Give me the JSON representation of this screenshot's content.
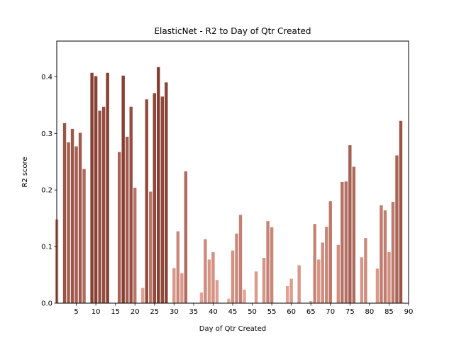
{
  "chart_data": {
    "type": "bar",
    "title": "ElasticNet - R2 to Day of Qtr Created",
    "xlabel": "Day of Qtr Created",
    "ylabel": "R2 score",
    "xlim": [
      0,
      90
    ],
    "ylim": [
      0,
      0.463
    ],
    "xticks": [
      5,
      10,
      15,
      20,
      25,
      30,
      35,
      40,
      45,
      50,
      55,
      60,
      65,
      70,
      75,
      80,
      85,
      90
    ],
    "yticks": [
      0.0,
      0.1,
      0.2,
      0.3,
      0.4
    ],
    "grid": false,
    "x": [
      0,
      1,
      2,
      3,
      4,
      5,
      6,
      7,
      8,
      9,
      10,
      11,
      12,
      13,
      14,
      15,
      16,
      17,
      18,
      19,
      20,
      21,
      22,
      23,
      24,
      25,
      26,
      27,
      28,
      29,
      30,
      31,
      32,
      33,
      34,
      35,
      36,
      37,
      38,
      39,
      40,
      41,
      42,
      43,
      44,
      45,
      46,
      47,
      48,
      49,
      50,
      51,
      52,
      53,
      54,
      55,
      56,
      57,
      58,
      59,
      60,
      61,
      62,
      63,
      64,
      65,
      66,
      67,
      68,
      69,
      70,
      71,
      72,
      73,
      74,
      75,
      76,
      77,
      78,
      79,
      80,
      81,
      82,
      83,
      84,
      85,
      86,
      87,
      88
    ],
    "values": [
      0.148,
      0,
      0.318,
      0.284,
      0.308,
      0.277,
      0.301,
      0.237,
      0,
      0.407,
      0.401,
      0.34,
      0.347,
      0.407,
      0,
      0,
      0.267,
      0.402,
      0.294,
      0.347,
      0.204,
      0,
      0.027,
      0.36,
      0.197,
      0.371,
      0.417,
      0.365,
      0.39,
      0,
      0.062,
      0.127,
      0.053,
      0.233,
      0,
      0,
      0,
      0.019,
      0.113,
      0.077,
      0.09,
      0.041,
      0,
      0,
      0.008,
      0.093,
      0.123,
      0.156,
      0.024,
      0,
      0,
      0.056,
      0,
      0.08,
      0.145,
      0.134,
      0,
      0,
      0,
      0.03,
      0.043,
      0,
      0.067,
      0,
      0,
      0.004,
      0.14,
      0.077,
      0.107,
      0.135,
      0.18,
      0,
      0.103,
      0.214,
      0.215,
      0.279,
      0.241,
      0,
      0.081,
      0.115,
      0,
      0,
      0.061,
      0.173,
      0.164,
      0.09,
      0.179,
      0.261,
      0.322
    ],
    "colors": {
      "bar_high": "#843c2f",
      "bar_low": "#e8a99a",
      "axes": "#000000",
      "background": "#ffffff"
    }
  }
}
